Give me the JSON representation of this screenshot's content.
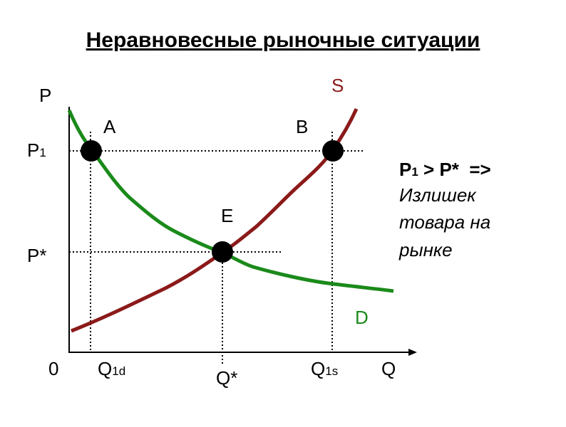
{
  "header": {
    "title": "Неравновесные рыночные ситуации"
  },
  "axes": {
    "y": "P",
    "x": "Q",
    "origin": "0"
  },
  "curves": {
    "supply": "S",
    "demand": "D"
  },
  "points": {
    "a": "A",
    "b": "B",
    "e": "E"
  },
  "y_labels": {
    "p1": {
      "main": "P",
      "sub": "1"
    },
    "p_star": "P*"
  },
  "x_labels": {
    "q1d": {
      "main": "Q",
      "sub": "1d"
    },
    "q_star": "Q*",
    "q1s": {
      "main": "Q",
      "sub": "1s"
    }
  },
  "note": {
    "line1": {
      "main": "P",
      "sub": "1",
      "rest": " > P*  =>"
    },
    "lines": [
      "Излишек",
      "товара на",
      "рынке"
    ]
  }
}
